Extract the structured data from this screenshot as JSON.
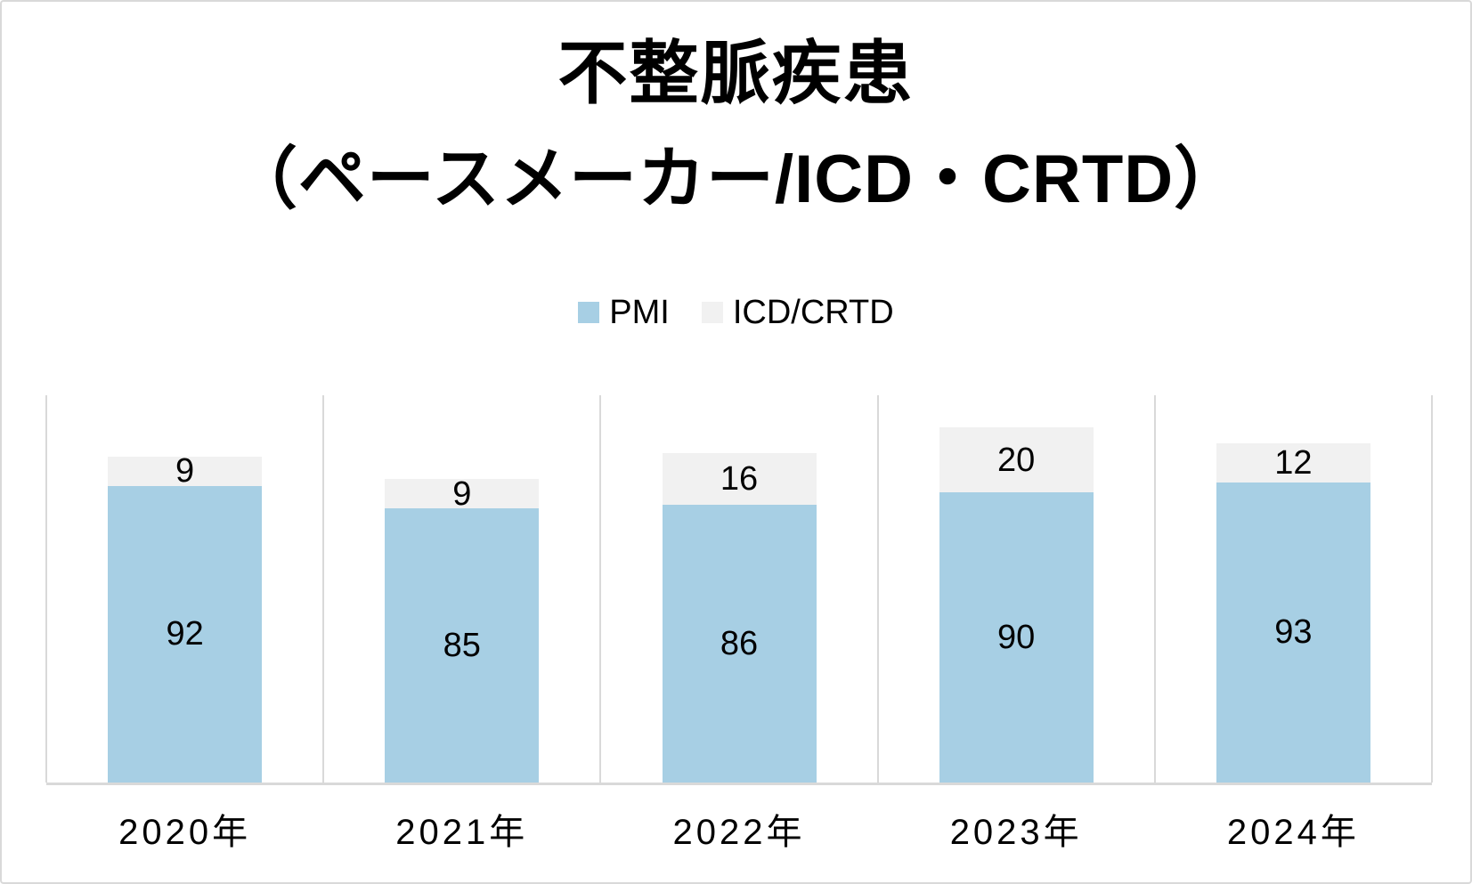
{
  "title": {
    "line1": "不整脈疾患",
    "line2": "（ペースメーカー/ICD・CRTD）"
  },
  "legend": {
    "items": [
      {
        "label": "PMI",
        "color": "#a7cfe4"
      },
      {
        "label": "ICD/CRTD",
        "color": "#f1f1f1"
      }
    ]
  },
  "chart_data": {
    "type": "bar",
    "stacked": true,
    "title": "不整脈疾患（ペースメーカー/ICD・CRTD）",
    "categories": [
      "2020年",
      "2021年",
      "2022年",
      "2023年",
      "2024年"
    ],
    "series": [
      {
        "name": "PMI",
        "color": "#a7cfe4",
        "values": [
          92,
          85,
          86,
          90,
          93
        ]
      },
      {
        "name": "ICD/CRTD",
        "color": "#f1f1f1",
        "values": [
          9,
          9,
          16,
          20,
          12
        ]
      }
    ],
    "ylim": [
      0,
      120
    ],
    "grid": "vertical lines at category boundaries",
    "gridline_color": "#d9d9d9",
    "axis_line_color": "#d9d9d9",
    "label_color": "#000000",
    "legend_position": "top-center",
    "data_labels": "centered inside each segment",
    "y_axis_labels_visible": false
  }
}
